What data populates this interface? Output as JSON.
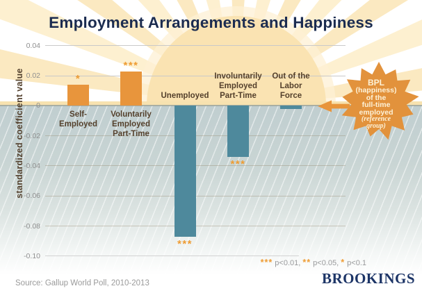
{
  "title": "Employment Arrangements and Happiness",
  "chart_data": {
    "type": "bar",
    "title": "Employment Arrangements and Happiness",
    "xlabel": "",
    "ylabel": "standardized coefficient value",
    "ylim": [
      -0.105,
      0.05
    ],
    "grid": true,
    "legend_position": "bottom-right",
    "yticks": [
      {
        "value": 0.04,
        "label": "0.04"
      },
      {
        "value": 0.02,
        "label": "0.02"
      },
      {
        "value": 0,
        "label": "0"
      },
      {
        "value": -0.02,
        "label": "-0.02"
      },
      {
        "value": -0.04,
        "label": "-0.04"
      },
      {
        "value": -0.06,
        "label": "-0.06"
      },
      {
        "value": -0.08,
        "label": "-0.08"
      },
      {
        "value": -0.1,
        "label": "-0.10"
      }
    ],
    "categories": [
      {
        "name": "Self-Employed",
        "label_lines": [
          "Self-",
          "Employed"
        ]
      },
      {
        "name": "Voluntarily Employed Part-Time",
        "label_lines": [
          "Voluntarily",
          "Employed",
          "Part-Time"
        ]
      },
      {
        "name": "Unemployed",
        "label_lines": [
          "Unemployed"
        ]
      },
      {
        "name": "Involuntarily Employed Part-Time",
        "label_lines": [
          "Involuntarily",
          "Employed",
          "Part-Time"
        ]
      },
      {
        "name": "Out of the Labor Force",
        "label_lines": [
          "Out of the",
          "Labor",
          "Force"
        ]
      }
    ],
    "series": [
      {
        "name": "standardized coefficient value",
        "values": [
          0.014,
          0.023,
          -0.087,
          -0.034,
          -0.002
        ]
      }
    ],
    "significance": [
      "*",
      "***",
      "***",
      "***",
      ""
    ],
    "colors": {
      "positive_bar": "#e8953c",
      "negative_bar": "#4e899c"
    }
  },
  "annotation": {
    "lines": [
      "BPL",
      "(happiness)",
      "of the",
      "full-time",
      "employed"
    ],
    "italic_lines": [
      "(reference",
      "group)"
    ]
  },
  "legend": {
    "items": [
      {
        "stars": "***",
        "label": "p<0.01"
      },
      {
        "stars": "**",
        "label": "p<0.05"
      },
      {
        "stars": "*",
        "label": "p<0.1"
      }
    ]
  },
  "footer": {
    "source": "Source: Gallup World Poll, 2010-2013",
    "logo": "BROOKINGS"
  },
  "palette": {
    "orange": "#e8953c",
    "teal": "#4e899c",
    "sun_disc": "#fae3b2",
    "sun_ray": "#fbe7ba",
    "below_zero_bg": "#c4d2d2",
    "title_navy": "#1b2c50",
    "label_brown": "#54402c",
    "brookings_navy": "#1d3567",
    "tick_gray": "#8f8f8f"
  }
}
